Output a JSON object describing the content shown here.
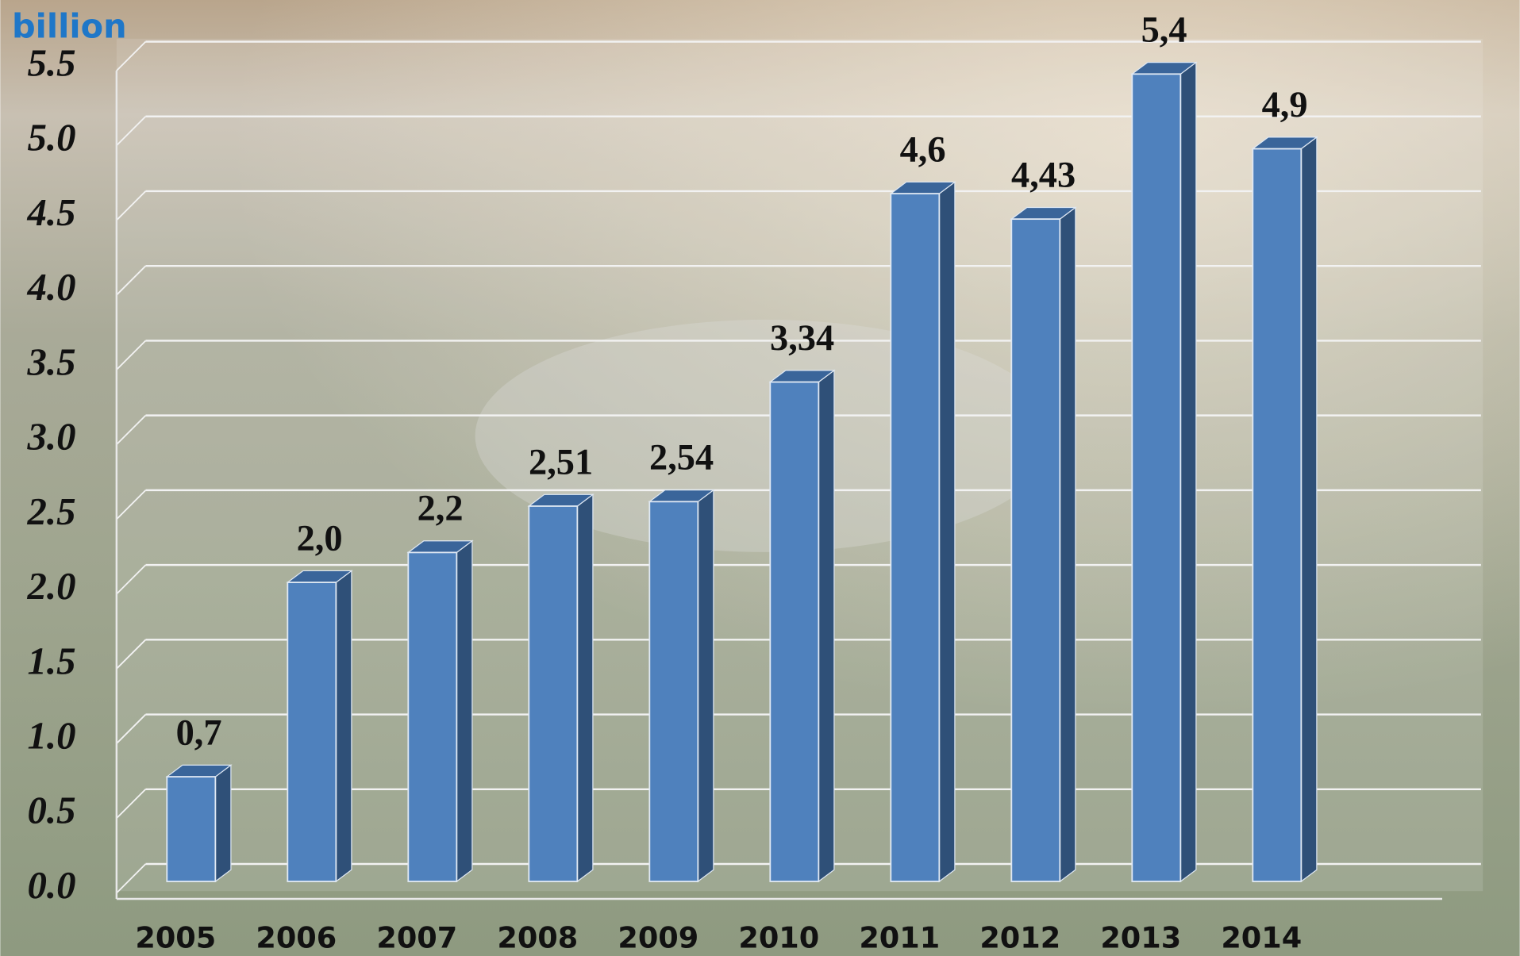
{
  "chart_data": {
    "type": "bar3d",
    "y_axis_label": "billion",
    "categories": [
      "2005",
      "2006",
      "2007",
      "2008",
      "2009",
      "2010",
      "2011",
      "2012",
      "2013",
      "2014"
    ],
    "values": [
      0.7,
      2.0,
      2.2,
      2.51,
      2.54,
      3.34,
      4.6,
      4.43,
      5.4,
      4.9
    ],
    "value_labels": [
      "0,7",
      "2,0",
      "2,2",
      "2,51",
      "2,54",
      "3,34",
      "4,6",
      "4,43",
      "5,4",
      "4,9"
    ],
    "color": "#4f81bd",
    "ylim": [
      0,
      5.5
    ],
    "yticks": [
      {
        "value": 0,
        "label": "0.0"
      },
      0.5,
      {
        "value": 1,
        "label": "1.0"
      },
      1.5,
      {
        "value": 2,
        "label": "2.0"
      },
      2.5,
      {
        "value": 3,
        "label": "3.0"
      },
      3.5,
      {
        "value": 4,
        "label": "4.0"
      },
      4.5,
      {
        "value": 5,
        "label": "5.0"
      },
      5.5
    ],
    "grid": true
  }
}
